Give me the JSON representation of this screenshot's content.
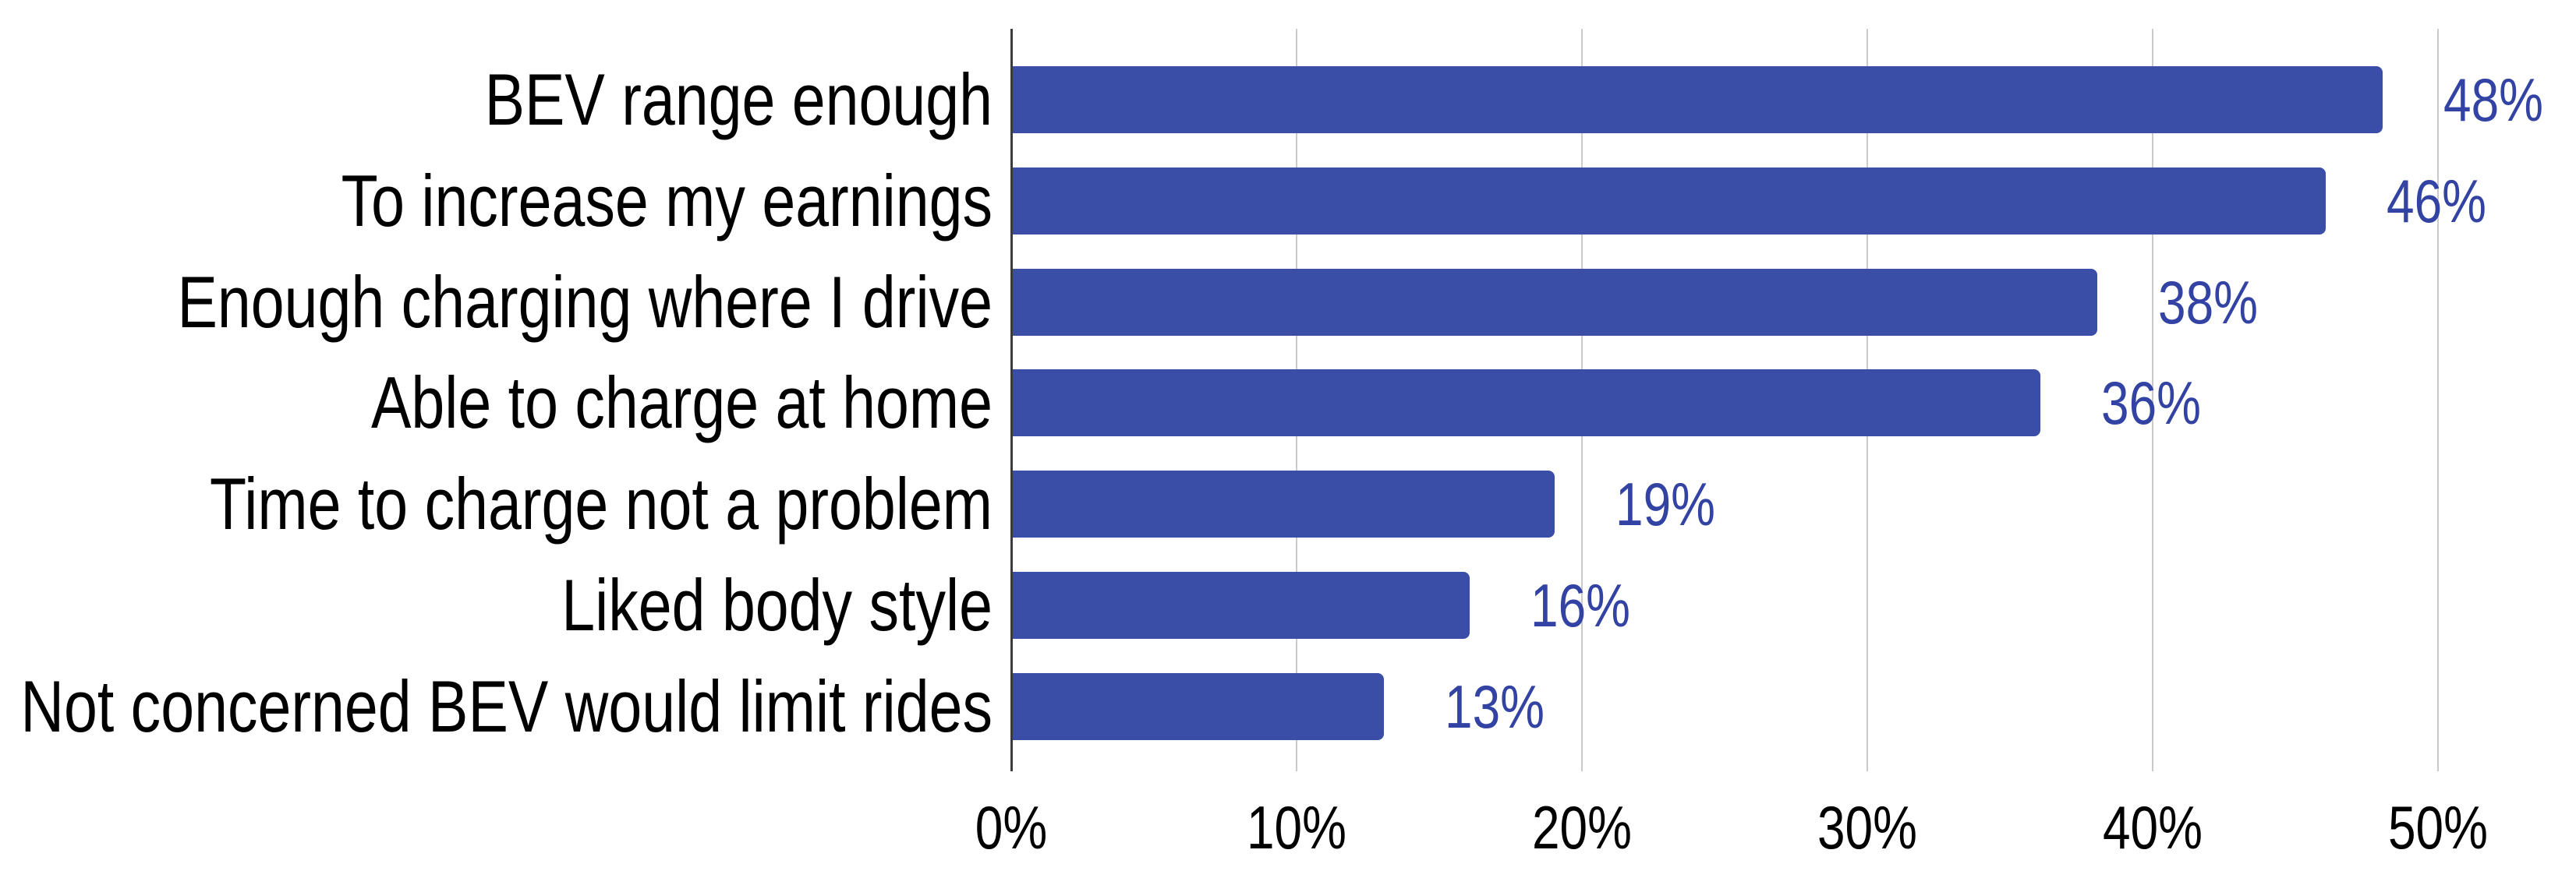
{
  "chart_data": {
    "type": "bar",
    "orientation": "horizontal",
    "title": "",
    "categories": [
      "BEV range enough",
      "To increase my earnings",
      "Enough charging where I drive",
      "Able to charge at home",
      "Time to charge not a problem",
      "Liked body style",
      "Not concerned BEV would limit rides"
    ],
    "values": [
      48,
      46,
      38,
      36,
      19,
      16,
      13
    ],
    "value_labels": [
      "48%",
      "46%",
      "38%",
      "36%",
      "19%",
      "16%",
      "13%"
    ],
    "x_ticks": [
      {
        "value": 0,
        "label": "0%"
      },
      {
        "value": 10,
        "label": "10%"
      },
      {
        "value": 20,
        "label": "20%"
      },
      {
        "value": 30,
        "label": "30%"
      },
      {
        "value": 40,
        "label": "40%"
      },
      {
        "value": 50,
        "label": "50%"
      }
    ],
    "xlim": [
      0,
      50
    ],
    "grid": true,
    "legend_position": "none",
    "colors": {
      "bar": "#3A4EA8",
      "value_label": "#3243A3",
      "category_label": "#000000",
      "tick_label": "#000000",
      "axis_line": "#3B3B3B",
      "gridline": "#CACACA",
      "background": "#FFFFFF"
    }
  }
}
